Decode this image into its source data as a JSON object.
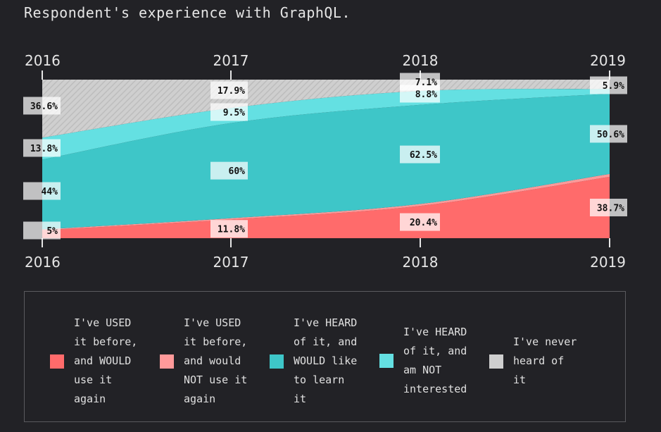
{
  "title": "Respondent's experience with GraphQL.",
  "chart_data": {
    "type": "area",
    "stacked": true,
    "years": [
      "2016",
      "2017",
      "2018",
      "2019"
    ],
    "series": [
      {
        "key": "used_would",
        "name": "I've USED it before, and WOULD use it again",
        "color": "#ff6b6b",
        "values": [
          5,
          11.8,
          20.4,
          38.7
        ],
        "labels": [
          "5%",
          "11.8%",
          "20.4%",
          "38.7%"
        ]
      },
      {
        "key": "used_not",
        "name": "I've USED it before, and would NOT use it again",
        "color": "#ff9a9a",
        "values": [
          0.6,
          0.8,
          1.2,
          1.8
        ],
        "labels": [
          "",
          "",
          "",
          ""
        ]
      },
      {
        "key": "heard_would",
        "name": "I've HEARD of it, and WOULD like to learn it",
        "color": "#3ec6c8",
        "values": [
          44,
          60,
          62.5,
          50.6
        ],
        "labels": [
          "44%",
          "60%",
          "62.5%",
          "50.6%"
        ]
      },
      {
        "key": "heard_not",
        "name": "I've HEARD of it, and am NOT interested",
        "color": "#64e0e2",
        "values": [
          13.8,
          9.5,
          8.8,
          3.0
        ],
        "labels": [
          "13.8%",
          "9.5%",
          "8.8%",
          ""
        ]
      },
      {
        "key": "never",
        "name": "I've never heard of it",
        "color": "#cfcfcf",
        "values": [
          36.6,
          17.9,
          7.1,
          5.9
        ],
        "labels": [
          "36.6%",
          "17.9%",
          "7.1%",
          "5.9%"
        ]
      }
    ]
  },
  "legend": {
    "items": [
      {
        "label": "I've USED\nit before,\nand WOULD\nuse it\nagain",
        "color": "#ff6b6b"
      },
      {
        "label": "I've USED\nit before,\nand would\nNOT use it\nagain",
        "color": "#ff9a9a"
      },
      {
        "label": "I've HEARD\nof it, and\nWOULD like\nto learn\nit",
        "color": "#3ec6c8"
      },
      {
        "label": "I've HEARD\nof it, and\nam NOT\ninterested",
        "color": "#64e0e2"
      },
      {
        "label": "I've never\nheard of\nit",
        "color": "#cfcfcf"
      }
    ]
  }
}
